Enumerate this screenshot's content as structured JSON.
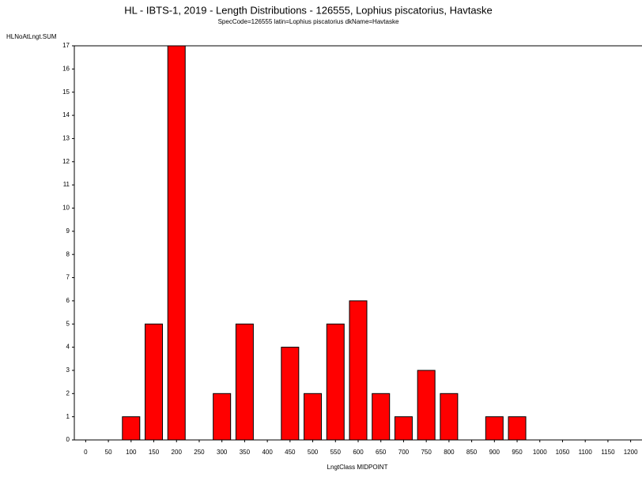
{
  "chart_data": {
    "type": "bar",
    "title": "HL - IBTS-1, 2019 - Length Distributions - 126555, Lophius piscatorius, Havtaske",
    "subtitle": "SpecCode=126555 latin=Lophius piscatorius dkName=Havtaske",
    "y_label": "HLNoAtLngt.SUM",
    "x_label": "LngtClass MIDPOINT",
    "categories": [
      "0",
      "50",
      "100",
      "150",
      "200",
      "250",
      "300",
      "350",
      "400",
      "450",
      "500",
      "550",
      "600",
      "650",
      "700",
      "750",
      "800",
      "850",
      "900",
      "950",
      "1000",
      "1050",
      "1100",
      "1150",
      "1200"
    ],
    "values": [
      0,
      0,
      1,
      5,
      17,
      0,
      2,
      5,
      0,
      4,
      2,
      5,
      6,
      2,
      1,
      3,
      2,
      0,
      1,
      1,
      0,
      0,
      0,
      0,
      0
    ],
    "color": "#ff0000",
    "ylim": [
      0,
      17
    ],
    "yticks": [
      0,
      1,
      2,
      3,
      4,
      5,
      6,
      7,
      8,
      9,
      10,
      11,
      12,
      13,
      14,
      15,
      16,
      17
    ]
  }
}
